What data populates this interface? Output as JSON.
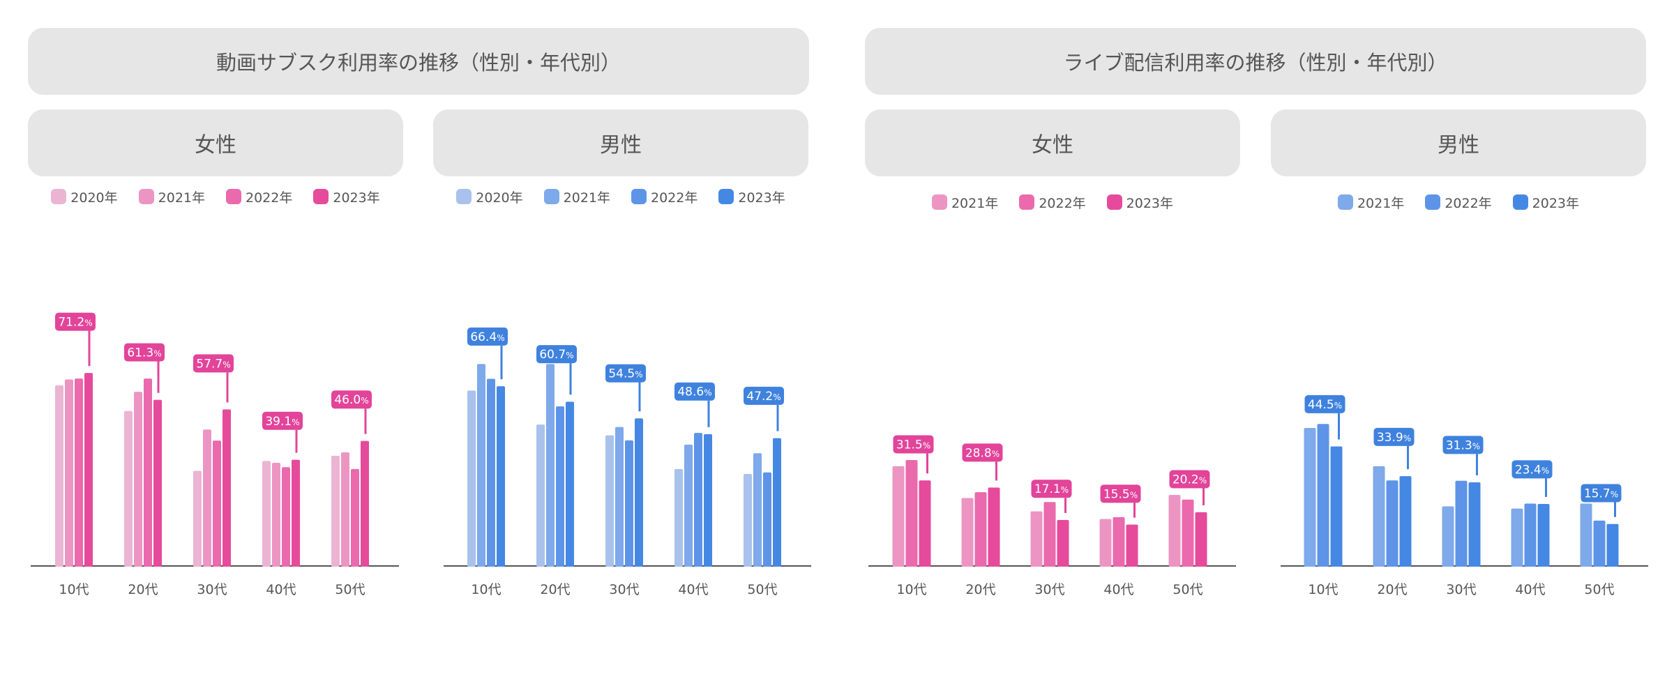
{
  "groups": [
    {
      "title": "動画サブスク利用率の推移（性別・年代別）"
    },
    {
      "title": "ライブ配信利用率の推移（性別・年代別）"
    }
  ],
  "chart_data": [
    {
      "type": "bar",
      "title": "女性",
      "theme": "pink",
      "categories": [
        "10代",
        "20代",
        "30代",
        "40代",
        "50代"
      ],
      "series": [
        {
          "name": "2020年",
          "color": "#ebb4d3",
          "values": [
            58.5,
            50.2,
            30.8,
            34.0,
            35.7
          ]
        },
        {
          "name": "2021年",
          "color": "#ec95c3",
          "values": [
            60.4,
            56.4,
            44.2,
            33.4,
            36.8
          ]
        },
        {
          "name": "2022年",
          "color": "#ea6aad",
          "values": [
            60.7,
            60.7,
            40.6,
            32.0,
            31.4
          ]
        },
        {
          "name": "2023年",
          "color": "#e64a9b",
          "values": [
            62.5,
            53.8,
            50.7,
            34.4,
            40.5
          ]
        }
      ],
      "callouts": [
        "71.2",
        "61.3",
        "57.7",
        "39.1",
        "46.0"
      ],
      "percent_sign": "%",
      "ylim": [
        0,
        100
      ]
    },
    {
      "type": "bar",
      "title": "男性",
      "theme": "blue",
      "categories": [
        "10代",
        "20代",
        "30代",
        "40代",
        "50代"
      ],
      "series": [
        {
          "name": "2020年",
          "color": "#a8c2ec",
          "values": [
            56.8,
            45.8,
            42.3,
            31.4,
            29.8
          ]
        },
        {
          "name": "2021年",
          "color": "#7ea9ea",
          "values": [
            65.4,
            65.4,
            45.0,
            39.3,
            36.5
          ]
        },
        {
          "name": "2022年",
          "color": "#5d94e8",
          "values": [
            60.6,
            51.7,
            40.7,
            43.1,
            30.3
          ]
        },
        {
          "name": "2023年",
          "color": "#4588e3",
          "values": [
            58.2,
            53.2,
            47.8,
            42.7,
            41.4
          ]
        }
      ],
      "callouts": [
        "66.4",
        "60.7",
        "54.5",
        "48.6",
        "47.2"
      ],
      "percent_sign": "%",
      "ylim": [
        0,
        100
      ]
    },
    {
      "type": "bar",
      "title": "女性",
      "theme": "pink",
      "categories": [
        "10代",
        "20代",
        "30代",
        "40代",
        "50代"
      ],
      "series": [
        {
          "name": "2021年",
          "color": "#ec95c3",
          "values": [
            32.3,
            22.0,
            17.7,
            15.2,
            23.0
          ]
        },
        {
          "name": "2022年",
          "color": "#ea6aad",
          "values": [
            34.3,
            23.9,
            20.7,
            15.8,
            21.5
          ]
        },
        {
          "name": "2023年",
          "color": "#e64a9b",
          "values": [
            27.7,
            25.4,
            14.9,
            13.4,
            17.4
          ]
        }
      ],
      "callouts": [
        "31.5",
        "28.8",
        "17.1",
        "15.5",
        "20.2"
      ],
      "percent_sign": "%",
      "ylim": [
        0,
        100
      ]
    },
    {
      "type": "bar",
      "title": "男性",
      "theme": "blue",
      "categories": [
        "10代",
        "20代",
        "30代",
        "40代",
        "50代"
      ],
      "series": [
        {
          "name": "2021年",
          "color": "#7ea9ea",
          "values": [
            44.7,
            32.3,
            19.3,
            18.6,
            20.2
          ]
        },
        {
          "name": "2022年",
          "color": "#5d94e8",
          "values": [
            46.0,
            27.7,
            27.6,
            20.2,
            14.7
          ]
        },
        {
          "name": "2023年",
          "color": "#4588e3",
          "values": [
            38.7,
            29.1,
            27.1,
            20.1,
            13.6
          ]
        }
      ],
      "callouts": [
        "44.5",
        "33.9",
        "31.3",
        "23.4",
        "15.7"
      ],
      "percent_sign": "%",
      "ylim": [
        0,
        100
      ]
    }
  ]
}
